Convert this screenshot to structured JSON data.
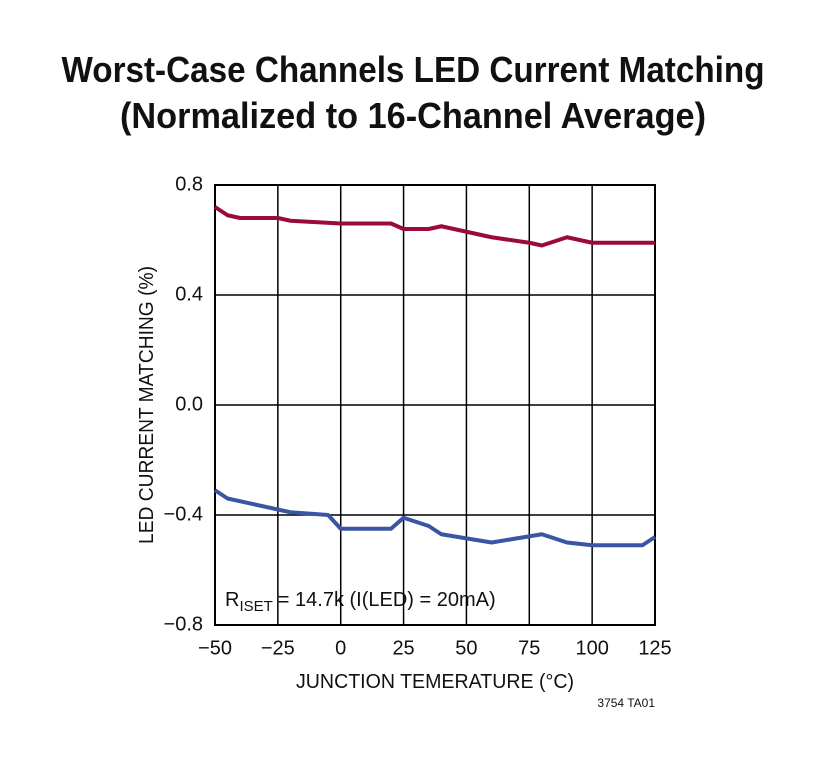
{
  "chart_data": {
    "type": "line",
    "title": [
      "Worst-Case Channels LED Current Matching",
      "(Normalized to 16-Channel Average)"
    ],
    "xlabel": "JUNCTION TEMERATURE (°C)",
    "ylabel": "LED CURRENT MATCHING (%)",
    "annotation": {
      "main": "R",
      "subscript": "ISET",
      "rest": "= 14.7k (I(LED) = 20mA)"
    },
    "footnote": "3754 TA01",
    "xlim": [
      -50,
      125
    ],
    "xticks": [
      {
        "value": -50,
        "label": "−50"
      },
      {
        "value": -25,
        "label": "−25"
      },
      0,
      25,
      50,
      75,
      100,
      125
    ],
    "ylim": [
      -0.8,
      0.8
    ],
    "yticks": [
      {
        "value": -0.8,
        "label": "−0.8"
      },
      {
        "value": -0.4,
        "label": "−0.4"
      },
      {
        "value": 0,
        "label": "0.0"
      },
      0.4,
      0.8
    ],
    "grid": true,
    "series": [
      {
        "color": "#9b0a3c",
        "x": [
          -50,
          -45,
          -40,
          -25,
          -20,
          0,
          20,
          25,
          35,
          40,
          50,
          60,
          75,
          80,
          90,
          100,
          125
        ],
        "values": [
          0.72,
          0.69,
          0.68,
          0.68,
          0.67,
          0.66,
          0.66,
          0.64,
          0.64,
          0.65,
          0.63,
          0.61,
          0.59,
          0.58,
          0.61,
          0.59,
          0.59
        ]
      },
      {
        "color": "#3a55a4",
        "x": [
          -50,
          -45,
          -25,
          -20,
          -5,
          0,
          5,
          20,
          25,
          35,
          40,
          60,
          80,
          90,
          100,
          120,
          125
        ],
        "values": [
          -0.31,
          -0.34,
          -0.38,
          -0.39,
          -0.4,
          -0.45,
          -0.45,
          -0.45,
          -0.41,
          -0.44,
          -0.47,
          -0.5,
          -0.47,
          -0.5,
          -0.51,
          -0.51,
          -0.48
        ]
      }
    ]
  }
}
